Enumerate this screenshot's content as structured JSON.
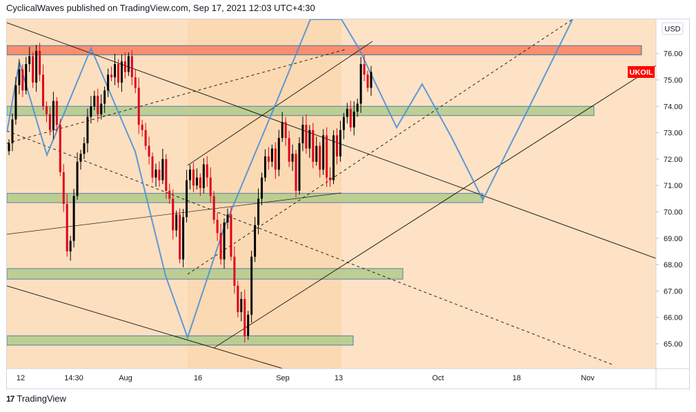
{
  "header": {
    "publish_line": "CyclicalWaves published on TradingView.com, Sep 17, 2021 12:03 UTC+4:30"
  },
  "footer": {
    "brand": "TradingView",
    "logo_glyph": "17"
  },
  "chart_data": {
    "type": "candlestick",
    "symbol_label": "UKOIL",
    "last_price": 75.3,
    "currency_label": "USD",
    "y_range": [
      64.2,
      77.0
    ],
    "y_ticks": [
      "76.00",
      "75.00",
      "74.00",
      "73.00",
      "72.00",
      "71.00",
      "70.00",
      "69.00",
      "68.00",
      "67.00",
      "66.00",
      "65.00"
    ],
    "x_ticks": [
      "12",
      "14:30",
      "Aug",
      "16",
      "Sep",
      "13",
      "Oct",
      "18",
      "Nov"
    ],
    "colors": {
      "up": "#000000",
      "down": "#e0001b",
      "price_label_bg": "#ff0000",
      "band_a": "#fbd9b3",
      "band_b": "#fde6cf",
      "resistance_zone": "#f88b6a",
      "support_zone": "#b3cc8b",
      "projection_line": "#4a90d9",
      "trend_line": "#000000"
    },
    "resistance_zone": [
      75.95,
      76.3
    ],
    "support_zones": [
      [
        73.65,
        74.0
      ],
      [
        70.35,
        70.7
      ],
      [
        67.45,
        67.85
      ],
      [
        64.95,
        65.3
      ]
    ],
    "candles_close": [
      72.6,
      73.5,
      74.8,
      75.4,
      74.6,
      75.6,
      75.9,
      74.9,
      76.1,
      75.2,
      74.0,
      73.7,
      73.1,
      74.2,
      73.3,
      71.5,
      70.3,
      68.5,
      68.9,
      70.6,
      71.9,
      72.2,
      72.6,
      73.6,
      74.0,
      74.4,
      73.7,
      74.1,
      74.6,
      75.2,
      75.1,
      75.6,
      74.9,
      75.7,
      75.3,
      75.9,
      75.1,
      74.7,
      73.3,
      73.1,
      72.5,
      72.1,
      71.3,
      71.6,
      71.2,
      72.0,
      70.8,
      70.5,
      69.3,
      69.9,
      68.2,
      69.8,
      71.2,
      71.6,
      71.0,
      71.3,
      70.9,
      71.8,
      71.3,
      70.6,
      69.7,
      69.2,
      68.2,
      69.6,
      69.9,
      68.3,
      67.2,
      66.2,
      66.7,
      65.3,
      66.1,
      68.3,
      69.5,
      70.5,
      71.3,
      72.1,
      71.9,
      72.4,
      71.6,
      72.8,
      73.4,
      72.8,
      71.9,
      72.2,
      70.8,
      72.6,
      73.3,
      72.4,
      73.1,
      71.9,
      72.5,
      71.6,
      72.9,
      71.3,
      71.2,
      72.9,
      72.1,
      73.1,
      73.6,
      73.9,
      73.2,
      73.8,
      74.1,
      75.6,
      75.2,
      74.7,
      75.3
    ]
  }
}
